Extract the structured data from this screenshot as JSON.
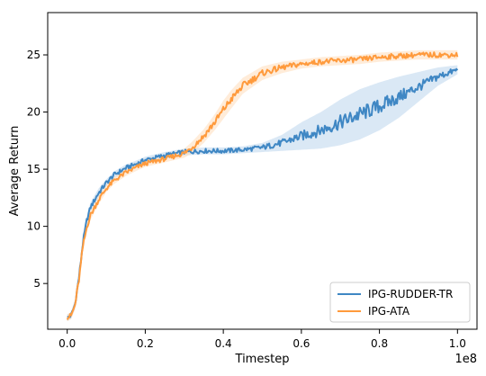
{
  "chart_data": {
    "type": "line",
    "title": "",
    "xlabel": "Timestep",
    "ylabel": "Average Return",
    "x_offset_label": "1e8",
    "xlim": [
      -0.05,
      1.05
    ],
    "ylim": [
      1.0,
      28.7
    ],
    "xticks": [
      {
        "value": 0.0,
        "label": "0.0"
      },
      {
        "value": 0.2,
        "label": "0.2"
      },
      {
        "value": 0.4,
        "label": "0.4"
      },
      {
        "value": 0.6,
        "label": "0.6"
      },
      {
        "value": 0.8,
        "label": "0.8"
      },
      {
        "value": 1.0,
        "label": "1.0"
      }
    ],
    "yticks": [
      {
        "value": 5,
        "label": "5"
      },
      {
        "value": 10,
        "label": "10"
      },
      {
        "value": 15,
        "label": "15"
      },
      {
        "value": 20,
        "label": "20"
      },
      {
        "value": 25,
        "label": "25"
      }
    ],
    "grid": false,
    "legend_position": "lower-right",
    "series": [
      {
        "name": "IPG-RUDDER-TR",
        "color": "#3f87c4",
        "band_color": "#bcd6ec",
        "x": [
          0.0,
          0.01,
          0.02,
          0.03,
          0.04,
          0.05,
          0.06,
          0.08,
          0.1,
          0.12,
          0.15,
          0.18,
          0.2,
          0.25,
          0.3,
          0.35,
          0.4,
          0.45,
          0.5,
          0.55,
          0.6,
          0.65,
          0.7,
          0.75,
          0.8,
          0.85,
          0.9,
          0.95,
          1.0
        ],
        "y": [
          2.0,
          2.2,
          3.2,
          5.5,
          8.5,
          10.5,
          11.7,
          12.9,
          13.8,
          14.5,
          15.1,
          15.5,
          15.8,
          16.2,
          16.5,
          16.6,
          16.6,
          16.7,
          16.9,
          17.3,
          17.9,
          18.4,
          19.1,
          19.8,
          20.5,
          21.3,
          22.2,
          23.1,
          23.7
        ],
        "band": [
          0.3,
          0.3,
          0.4,
          0.5,
          0.5,
          0.4,
          0.4,
          0.4,
          0.3,
          0.3,
          0.3,
          0.3,
          0.3,
          0.3,
          0.3,
          0.3,
          0.3,
          0.3,
          0.4,
          0.7,
          1.2,
          1.6,
          2.0,
          2.2,
          2.1,
          1.8,
          1.3,
          0.8,
          0.4
        ]
      },
      {
        "name": "IPG-ATA",
        "color": "#ff9a3c",
        "band_color": "#ffdcb9",
        "x": [
          0.0,
          0.01,
          0.02,
          0.03,
          0.04,
          0.05,
          0.06,
          0.08,
          0.1,
          0.12,
          0.15,
          0.18,
          0.2,
          0.25,
          0.3,
          0.32,
          0.35,
          0.38,
          0.4,
          0.42,
          0.45,
          0.5,
          0.55,
          0.6,
          0.65,
          0.7,
          0.75,
          0.8,
          0.85,
          0.9,
          0.95,
          1.0
        ],
        "y": [
          2.0,
          2.2,
          3.1,
          5.3,
          8.2,
          9.9,
          11.0,
          12.3,
          13.3,
          14.0,
          14.7,
          15.2,
          15.5,
          15.9,
          16.4,
          16.9,
          17.9,
          19.2,
          20.2,
          21.1,
          22.3,
          23.4,
          23.9,
          24.2,
          24.4,
          24.5,
          24.6,
          24.8,
          24.9,
          25.0,
          25.0,
          25.0
        ],
        "band": [
          0.3,
          0.3,
          0.4,
          0.5,
          0.5,
          0.4,
          0.4,
          0.4,
          0.3,
          0.3,
          0.3,
          0.3,
          0.3,
          0.3,
          0.4,
          0.5,
          0.6,
          0.7,
          0.8,
          0.8,
          0.7,
          0.6,
          0.5,
          0.4,
          0.4,
          0.4,
          0.4,
          0.4,
          0.4,
          0.4,
          0.4,
          0.4
        ]
      }
    ]
  }
}
